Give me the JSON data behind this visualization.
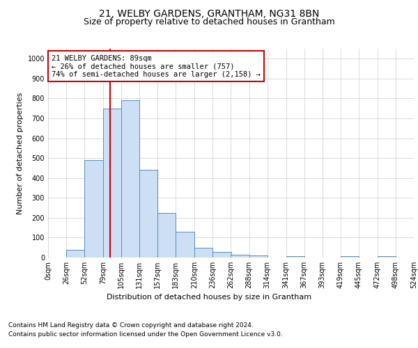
{
  "title1": "21, WELBY GARDENS, GRANTHAM, NG31 8BN",
  "title2": "Size of property relative to detached houses in Grantham",
  "xlabel": "Distribution of detached houses by size in Grantham",
  "ylabel": "Number of detached properties",
  "bin_edges": [
    0,
    26,
    52,
    79,
    105,
    131,
    157,
    183,
    210,
    236,
    262,
    288,
    314,
    341,
    367,
    393,
    419,
    445,
    472,
    498,
    524
  ],
  "bar_heights": [
    0,
    40,
    490,
    750,
    790,
    440,
    225,
    128,
    50,
    27,
    15,
    10,
    0,
    8,
    0,
    0,
    8,
    0,
    8,
    0
  ],
  "bar_color": "#ccdff5",
  "bar_edge_color": "#5b8db8",
  "red_line_x": 89,
  "annotation_text": "21 WELBY GARDENS: 89sqm\n← 26% of detached houses are smaller (757)\n74% of semi-detached houses are larger (2,158) →",
  "annotation_box_color": "#ffffff",
  "annotation_box_edge_color": "#cc0000",
  "ylim": [
    0,
    1050
  ],
  "yticks": [
    0,
    100,
    200,
    300,
    400,
    500,
    600,
    700,
    800,
    900,
    1000
  ],
  "footer1": "Contains HM Land Registry data © Crown copyright and database right 2024.",
  "footer2": "Contains public sector information licensed under the Open Government Licence v3.0.",
  "bg_color": "#ffffff",
  "grid_color": "#cccccc",
  "title_fontsize": 10,
  "subtitle_fontsize": 9,
  "axis_label_fontsize": 8,
  "tick_fontsize": 7,
  "annotation_fontsize": 7.5,
  "footer_fontsize": 6.5
}
